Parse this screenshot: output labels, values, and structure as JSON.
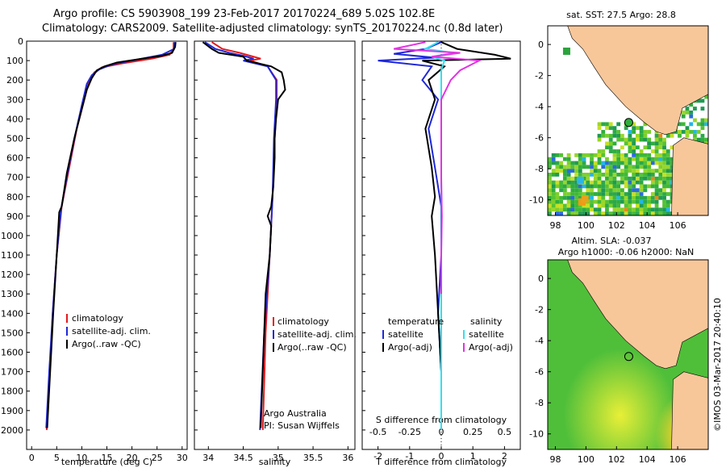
{
  "header": {
    "line1": "Argo profile: CS 5903908_199 23-Feb-2017 20170224_689 5.02S 102.8E",
    "line2": "Climatology: CARS2009. Satellite-adjusted climatology: synTS_20170224.nc (0.8d later)"
  },
  "colors": {
    "climatology": "#e41a1c",
    "satellite": "#1f28d8",
    "argo": "#000000",
    "cyan": "#33dfee",
    "magenta": "#e233e2",
    "land": "#f7c79a",
    "sla_bg": "#4fbf3a"
  },
  "chart_data": [
    {
      "type": "line",
      "name": "temperature-profile",
      "xlabel": "temperature (deg C)",
      "ylabel": "",
      "xlim": [
        -1,
        31
      ],
      "ylim": [
        2100,
        0
      ],
      "xticks": [
        0,
        5,
        10,
        15,
        20,
        25,
        30
      ],
      "yticks": [
        0,
        100,
        200,
        300,
        400,
        500,
        600,
        700,
        800,
        900,
        1000,
        1100,
        1200,
        1300,
        1400,
        1500,
        1600,
        1700,
        1800,
        1900,
        2000
      ],
      "legend": [
        "climatology",
        "satellite-adj. clim.",
        "Argo(..raw -QC)"
      ],
      "series": [
        {
          "name": "climatology",
          "color": "#e41a1c",
          "points": [
            [
              28.3,
              5
            ],
            [
              28.3,
              40
            ],
            [
              27.5,
              70
            ],
            [
              24,
              90
            ],
            [
              18,
              115
            ],
            [
              14,
              135
            ],
            [
              12.5,
              160
            ],
            [
              11.5,
              200
            ],
            [
              10.5,
              300
            ],
            [
              9,
              450
            ],
            [
              7.5,
              650
            ],
            [
              6,
              850
            ],
            [
              5,
              1100
            ],
            [
              4.2,
              1400
            ],
            [
              3.6,
              1700
            ],
            [
              3,
              2000
            ]
          ]
        },
        {
          "name": "satellite",
          "color": "#1f28d8",
          "points": [
            [
              28.5,
              5
            ],
            [
              28.4,
              40
            ],
            [
              26,
              70
            ],
            [
              21,
              95
            ],
            [
              16,
              120
            ],
            [
              13.5,
              145
            ],
            [
              12,
              175
            ],
            [
              11,
              220
            ],
            [
              10,
              330
            ],
            [
              8.7,
              480
            ],
            [
              7.3,
              660
            ],
            [
              5.9,
              860
            ],
            [
              5,
              1100
            ],
            [
              4.2,
              1400
            ],
            [
              3.5,
              1700
            ],
            [
              2.9,
              1990
            ]
          ]
        },
        {
          "name": "argo",
          "color": "#000000",
          "points": [
            [
              28.7,
              5
            ],
            [
              28.6,
              30
            ],
            [
              28,
              60
            ],
            [
              26,
              75
            ],
            [
              22,
              90
            ],
            [
              17,
              110
            ],
            [
              14.5,
              130
            ],
            [
              13,
              150
            ],
            [
              12,
              190
            ],
            [
              11,
              250
            ],
            [
              10,
              350
            ],
            [
              8.5,
              500
            ],
            [
              7,
              680
            ],
            [
              6,
              850
            ],
            [
              5.5,
              880
            ],
            [
              5,
              1100
            ],
            [
              4.3,
              1400
            ],
            [
              3.7,
              1700
            ],
            [
              3.1,
              1990
            ]
          ]
        }
      ]
    },
    {
      "type": "line",
      "name": "salinity-profile",
      "xlabel": "salinity",
      "ylabel": "",
      "xlim": [
        33.8,
        36.1
      ],
      "ylim": [
        2100,
        0
      ],
      "xticks": [
        34,
        34.5,
        35,
        35.5,
        36
      ],
      "legend": [
        "climatology",
        "satellite-adj. clim.",
        "Argo(..raw -QC)"
      ],
      "annotation": [
        "Argo Australia",
        "PI: Susan Wijffels"
      ],
      "series": [
        {
          "name": "climatology",
          "color": "#e41a1c",
          "points": [
            [
              34.05,
              5
            ],
            [
              34.2,
              40
            ],
            [
              34.45,
              60
            ],
            [
              34.6,
              75
            ],
            [
              34.75,
              90
            ],
            [
              34.6,
              100
            ],
            [
              34.85,
              130
            ],
            [
              34.98,
              200
            ],
            [
              34.98,
              300
            ],
            [
              34.95,
              500
            ],
            [
              34.92,
              800
            ],
            [
              34.88,
              1100
            ],
            [
              34.82,
              1500
            ],
            [
              34.78,
              2000
            ]
          ]
        },
        {
          "name": "satellite",
          "color": "#1f28d8",
          "points": [
            [
              33.95,
              5
            ],
            [
              34.1,
              40
            ],
            [
              34.3,
              60
            ],
            [
              34.5,
              75
            ],
            [
              34.65,
              90
            ],
            [
              34.5,
              100
            ],
            [
              34.85,
              130
            ],
            [
              34.97,
              200
            ],
            [
              34.97,
              300
            ],
            [
              34.94,
              500
            ],
            [
              34.92,
              800
            ],
            [
              34.88,
              1100
            ],
            [
              34.8,
              1500
            ],
            [
              34.74,
              2000
            ]
          ]
        },
        {
          "name": "argo",
          "color": "#000000",
          "points": [
            [
              33.92,
              5
            ],
            [
              34.05,
              40
            ],
            [
              34.15,
              60
            ],
            [
              34.5,
              80
            ],
            [
              34.55,
              100
            ],
            [
              34.9,
              130
            ],
            [
              35.05,
              160
            ],
            [
              35.08,
              200
            ],
            [
              35.1,
              250
            ],
            [
              35.0,
              300
            ],
            [
              34.97,
              400
            ],
            [
              34.95,
              500
            ],
            [
              34.95,
              600
            ],
            [
              34.93,
              750
            ],
            [
              34.9,
              850
            ],
            [
              34.85,
              900
            ],
            [
              34.9,
              950
            ],
            [
              34.88,
              1100
            ],
            [
              34.82,
              1300
            ],
            [
              34.8,
              1500
            ],
            [
              34.77,
              1800
            ],
            [
              34.75,
              1990
            ]
          ]
        }
      ]
    },
    {
      "type": "line",
      "name": "difference-profile",
      "xlabel": "T difference from climatology",
      "xlabel_top": "S difference from climatology",
      "xlim": [
        -2.5,
        2.5
      ],
      "ylim": [
        2100,
        0
      ],
      "xticks": [
        -2,
        -1,
        0,
        1,
        2
      ],
      "xticks_top": [
        -0.5,
        -0.25,
        0,
        0.25,
        0.5
      ],
      "legend_left": [
        "temperature",
        "satellite",
        "Argo(-adj)"
      ],
      "legend_right": [
        "salinity",
        "satellite",
        "Argo(-adj)"
      ],
      "series": [
        {
          "name": "T satellite",
          "color": "#1f28d8",
          "points": [
            [
              0,
              5
            ],
            [
              -0.5,
              40
            ],
            [
              -1.5,
              65
            ],
            [
              -0.2,
              85
            ],
            [
              -2,
              100
            ],
            [
              -0.3,
              130
            ],
            [
              -0.6,
              200
            ],
            [
              -0.1,
              300
            ],
            [
              -0.4,
              450
            ],
            [
              -0.2,
              650
            ],
            [
              0,
              850
            ],
            [
              0,
              1100
            ],
            [
              -0.1,
              1400
            ],
            [
              0,
              1700
            ],
            [
              0,
              2000
            ]
          ]
        },
        {
          "name": "T argo",
          "color": "#000000",
          "points": [
            [
              0,
              5
            ],
            [
              0.5,
              40
            ],
            [
              1.7,
              70
            ],
            [
              2.2,
              90
            ],
            [
              -0.6,
              100
            ],
            [
              0.1,
              130
            ],
            [
              -0.4,
              200
            ],
            [
              -0.2,
              300
            ],
            [
              -0.5,
              450
            ],
            [
              -0.3,
              650
            ],
            [
              -0.2,
              800
            ],
            [
              -0.3,
              900
            ],
            [
              -0.2,
              1100
            ],
            [
              -0.1,
              1400
            ],
            [
              0,
              1700
            ],
            [
              0,
              2000
            ]
          ]
        },
        {
          "name": "S satellite",
          "color": "#33dfee",
          "points": [
            [
              -0.1,
              5
            ],
            [
              -0.5,
              40
            ],
            [
              0.4,
              60
            ],
            [
              -0.3,
              80
            ],
            [
              0.1,
              100
            ],
            [
              0,
              150
            ],
            [
              0,
              300
            ],
            [
              0,
              500
            ],
            [
              0,
              700
            ],
            [
              0.01,
              900
            ],
            [
              0,
              1100
            ],
            [
              0,
              1400
            ],
            [
              0,
              1700
            ],
            [
              0,
              2000
            ]
          ]
        },
        {
          "name": "S argo",
          "color": "#e233e2",
          "points": [
            [
              -0.5,
              5
            ],
            [
              -1.5,
              40
            ],
            [
              0.6,
              60
            ],
            [
              -0.3,
              80
            ],
            [
              1.2,
              100
            ],
            [
              0.6,
              150
            ],
            [
              0.3,
              200
            ],
            [
              0,
              300
            ],
            [
              0,
              500
            ],
            [
              0,
              700
            ],
            [
              0.02,
              900
            ],
            [
              0,
              1100
            ],
            [
              0,
              1300
            ]
          ]
        }
      ]
    },
    {
      "type": "heatmap",
      "name": "sst-map",
      "title": "sat. SST: 27.5 Argo: 28.8",
      "xticks": [
        98,
        100,
        102,
        104,
        106
      ],
      "yticks": [
        0,
        -2,
        -4,
        -6,
        -8,
        -10
      ],
      "xlim": [
        97.5,
        108
      ],
      "ylim": [
        -11,
        1.2
      ]
    },
    {
      "type": "heatmap",
      "name": "sla-map",
      "title": "Altim. SLA: -0.037",
      "subtitle": "Argo h1000: -0.06 h2000: NaN",
      "xticks": [
        98,
        100,
        102,
        104,
        106
      ],
      "yticks": [
        0,
        -2,
        -4,
        -6,
        -8,
        -10
      ],
      "xlim": [
        97.5,
        108
      ],
      "ylim": [
        -11,
        1.2
      ]
    }
  ],
  "credit": "©IMOS 03-Mar-2017 20:40:10"
}
